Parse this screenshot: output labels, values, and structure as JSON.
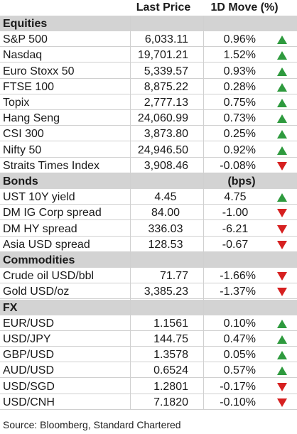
{
  "header": {
    "last_price": "Last Price",
    "move": "1D Move (%)"
  },
  "colors": {
    "up": "#2e9a3e",
    "down": "#d62020",
    "section_bg": "#d3d3d3"
  },
  "sections": [
    {
      "title": "Equities",
      "unit": "",
      "rows": [
        {
          "name": "S&P 500",
          "price": "6,033.11",
          "move": "0.96%",
          "dir": "up"
        },
        {
          "name": "Nasdaq",
          "price": "19,701.21",
          "move": "1.52%",
          "dir": "up"
        },
        {
          "name": "Euro Stoxx 50",
          "price": "5,339.57",
          "move": "0.93%",
          "dir": "up"
        },
        {
          "name": "FTSE 100",
          "price": "8,875.22",
          "move": "0.28%",
          "dir": "up"
        },
        {
          "name": "Topix",
          "price": "2,777.13",
          "move": "0.75%",
          "dir": "up"
        },
        {
          "name": "Hang Seng",
          "price": "24,060.99",
          "move": "0.73%",
          "dir": "up"
        },
        {
          "name": "CSI 300",
          "price": "3,873.80",
          "move": "0.25%",
          "dir": "up"
        },
        {
          "name": "Nifty 50",
          "price": "24,946.50",
          "move": "0.92%",
          "dir": "up"
        },
        {
          "name": "Straits Times Index",
          "price": "3,908.46",
          "move": "-0.08%",
          "dir": "down"
        }
      ]
    },
    {
      "title": "Bonds",
      "unit": "(bps)",
      "rows": [
        {
          "name": "UST 10Y yield",
          "price": "4.45",
          "move": "4.75",
          "dir": "up"
        },
        {
          "name": "DM IG Corp spread",
          "price": "84.00",
          "move": "-1.00",
          "dir": "down"
        },
        {
          "name": "DM HY spread",
          "price": "336.03",
          "move": "-6.21",
          "dir": "down"
        },
        {
          "name": "Asia USD spread",
          "price": "128.53",
          "move": "-0.67",
          "dir": "down"
        }
      ]
    },
    {
      "title": "Commodities",
      "unit": "",
      "rows": [
        {
          "name": "Crude oil USD/bbl",
          "price": "71.77",
          "move": "-1.66%",
          "dir": "down"
        },
        {
          "name": "Gold USD/oz",
          "price": "3,385.23",
          "move": "-1.37%",
          "dir": "down"
        }
      ]
    },
    {
      "title": "FX",
      "unit": "",
      "rows": [
        {
          "name": "EUR/USD",
          "price": "1.1561",
          "move": "0.10%",
          "dir": "up"
        },
        {
          "name": "USD/JPY",
          "price": "144.75",
          "move": "0.47%",
          "dir": "up"
        },
        {
          "name": "GBP/USD",
          "price": "1.3578",
          "move": "0.05%",
          "dir": "up"
        },
        {
          "name": "AUD/USD",
          "price": "0.6524",
          "move": "0.57%",
          "dir": "up"
        },
        {
          "name": "USD/SGD",
          "price": "1.2801",
          "move": "-0.17%",
          "dir": "down"
        },
        {
          "name": "USD/CNH",
          "price": "7.1820",
          "move": "-0.10%",
          "dir": "down"
        }
      ]
    }
  ],
  "source": "Source: Bloomberg, Standard Chartered"
}
